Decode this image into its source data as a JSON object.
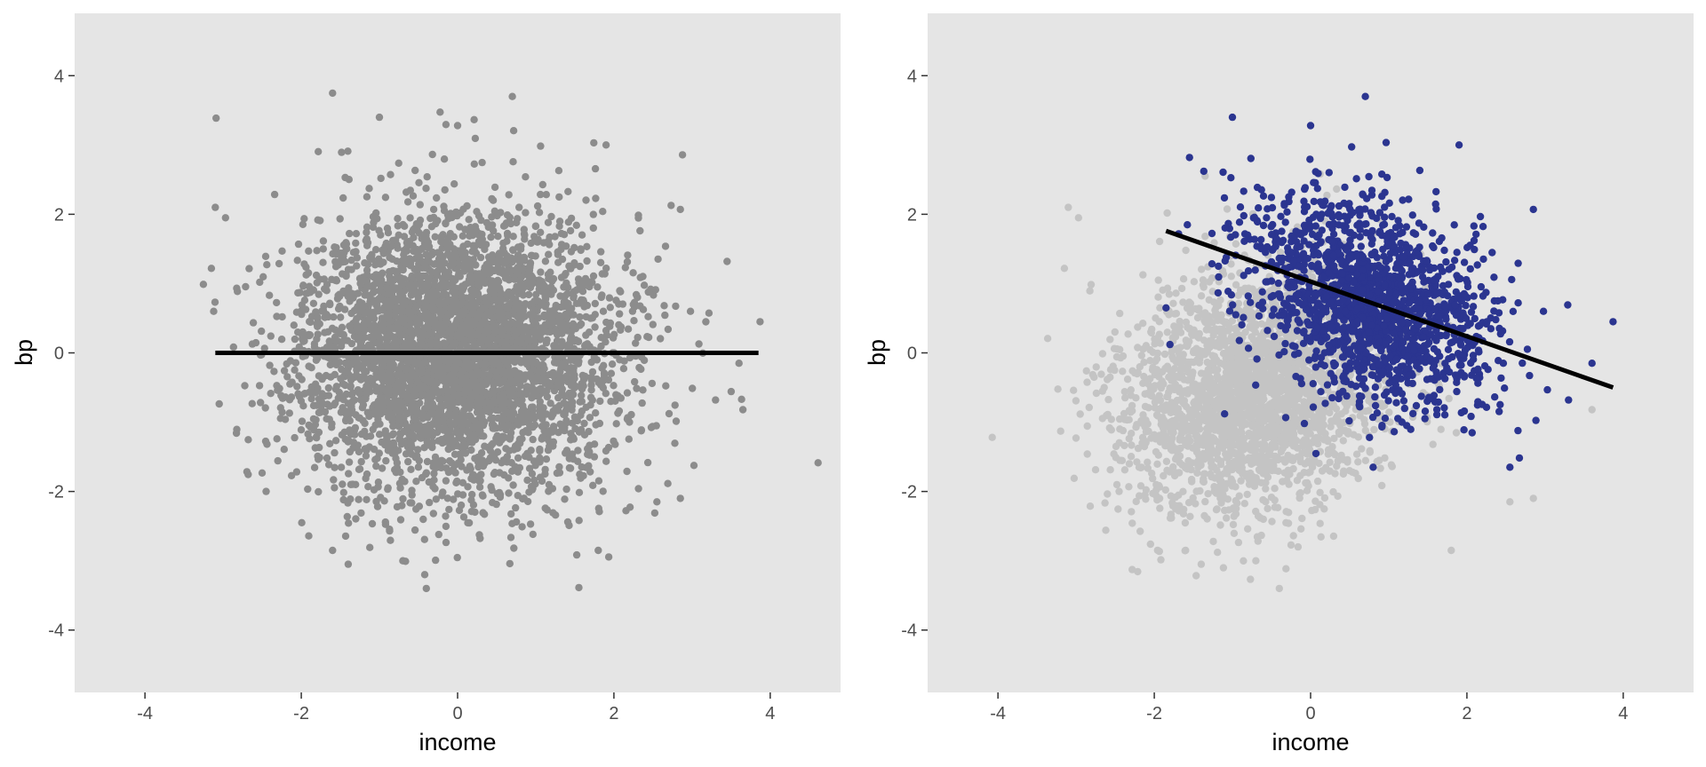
{
  "chart_data": [
    {
      "type": "scatter",
      "panel": "left",
      "title": "",
      "xlabel": "income",
      "ylabel": "bp",
      "xlim": [
        -4.9,
        4.9
      ],
      "ylim": [
        -4.9,
        4.9
      ],
      "x_ticks": [
        -4,
        -2,
        0,
        2,
        4
      ],
      "y_ticks": [
        -4,
        -2,
        0,
        2,
        4
      ],
      "x_tick_labels": [
        "-4",
        "-2",
        "0",
        "2",
        "4"
      ],
      "y_tick_labels": [
        "-4",
        "-2",
        "0",
        "2",
        "4"
      ],
      "grid": false,
      "legend": "none",
      "series": [
        {
          "role": "all-points",
          "color": "#8c8c8c",
          "distribution": {
            "n": 4200,
            "x_mean": 0.0,
            "x_sd": 1.0,
            "y_mean": 0.0,
            "y_sd": 1.0,
            "correlation": 0.0,
            "seed": 11
          },
          "outliers": [
            {
              "x": 0.7,
              "y": 3.7
            },
            {
              "x": -1.0,
              "y": 3.4
            },
            {
              "x": 0.0,
              "y": 3.28
            },
            {
              "x": 1.9,
              "y": 3.0
            },
            {
              "x": -3.1,
              "y": 2.1
            },
            {
              "x": -2.97,
              "y": 1.95
            },
            {
              "x": 2.85,
              "y": 2.07
            },
            {
              "x": 3.87,
              "y": 0.45
            },
            {
              "x": 3.6,
              "y": -0.15
            },
            {
              "x": 3.65,
              "y": -0.82
            },
            {
              "x": 3.3,
              "y": -0.68
            },
            {
              "x": -0.4,
              "y": -3.4
            },
            {
              "x": -1.4,
              "y": -3.05
            },
            {
              "x": -1.6,
              "y": -2.85
            },
            {
              "x": 1.8,
              "y": -2.85
            },
            {
              "x": -2.45,
              "y": -2.0
            },
            {
              "x": 2.55,
              "y": -2.15
            },
            {
              "x": 2.85,
              "y": -2.1
            },
            {
              "x": -3.15,
              "y": 1.22
            },
            {
              "x": 2.98,
              "y": 0.6
            },
            {
              "x": -0.7,
              "y": -3.0
            }
          ]
        }
      ],
      "fit_line": {
        "color": "#000000",
        "x": [
          -3.1,
          3.85
        ],
        "y": [
          0.0,
          0.0
        ]
      }
    },
    {
      "type": "scatter",
      "panel": "right",
      "title": "",
      "xlabel": "income",
      "ylabel": "bp",
      "xlim": [
        -4.9,
        4.9
      ],
      "ylim": [
        -4.9,
        4.9
      ],
      "x_ticks": [
        -4,
        -2,
        0,
        2,
        4
      ],
      "y_ticks": [
        -4,
        -2,
        0,
        2,
        4
      ],
      "x_tick_labels": [
        "-4",
        "-2",
        "0",
        "2",
        "4"
      ],
      "y_tick_labels": [
        "-4",
        "-2",
        "0",
        "2",
        "4"
      ],
      "grid": false,
      "legend": "none",
      "series": [
        {
          "role": "excluded-points",
          "color": "#c4c4c4",
          "distribution": {
            "n": 2600,
            "x_mean": -0.7,
            "x_sd": 0.85,
            "y_mean": -0.55,
            "y_sd": 0.85,
            "correlation": 0.2,
            "seed": 23
          },
          "outliers": [
            {
              "x": -3.1,
              "y": 2.1
            },
            {
              "x": -2.97,
              "y": 1.95
            },
            {
              "x": -3.15,
              "y": 1.22
            },
            {
              "x": -0.4,
              "y": -3.4
            },
            {
              "x": -1.4,
              "y": -3.05
            },
            {
              "x": -1.6,
              "y": -2.85
            },
            {
              "x": 1.8,
              "y": -2.85
            },
            {
              "x": -2.45,
              "y": -2.0
            },
            {
              "x": 2.55,
              "y": -2.15
            },
            {
              "x": 2.85,
              "y": -2.1
            },
            {
              "x": 3.6,
              "y": -0.82
            },
            {
              "x": -0.7,
              "y": -3.0
            },
            {
              "x": -1.35,
              "y": 2.55
            }
          ]
        },
        {
          "role": "selected-points",
          "color": "#2b3590",
          "distribution": {
            "n": 1600,
            "x_mean": 0.75,
            "x_sd": 0.75,
            "y_mean": 0.75,
            "y_sd": 0.75,
            "correlation": -0.35,
            "seed": 37
          },
          "outliers": [
            {
              "x": 0.7,
              "y": 3.7
            },
            {
              "x": -1.0,
              "y": 3.4
            },
            {
              "x": 0.0,
              "y": 3.28
            },
            {
              "x": 1.9,
              "y": 3.0
            },
            {
              "x": -1.55,
              "y": 2.82
            },
            {
              "x": 2.85,
              "y": 2.07
            },
            {
              "x": 3.87,
              "y": 0.45
            },
            {
              "x": 3.6,
              "y": -0.15
            },
            {
              "x": 3.3,
              "y": -0.68
            },
            {
              "x": -1.8,
              "y": 0.12
            },
            {
              "x": -1.85,
              "y": 0.65
            },
            {
              "x": -1.1,
              "y": -0.88
            },
            {
              "x": 2.98,
              "y": 0.6
            },
            {
              "x": 2.55,
              "y": -1.65
            },
            {
              "x": 0.8,
              "y": -1.65
            }
          ]
        }
      ],
      "fit_line": {
        "color": "#000000",
        "x": [
          -1.85,
          3.87
        ],
        "y": [
          1.76,
          -0.5
        ]
      }
    }
  ]
}
